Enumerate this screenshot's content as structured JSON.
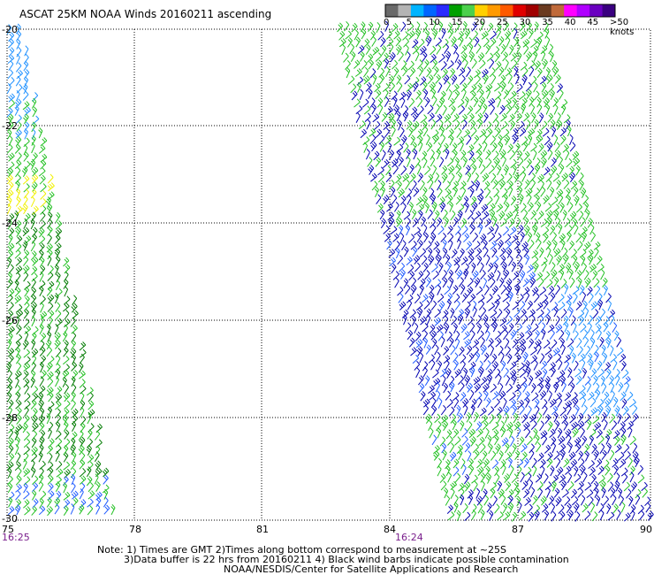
{
  "title": "ASCAT 25KM NOAA Winds 20160211 ascending",
  "legend": {
    "colors": [
      "#6a6a6a",
      "#b4b4b4",
      "#00b4ff",
      "#0066ff",
      "#2a2aff",
      "#00a000",
      "#4cd04c",
      "#ffd000",
      "#ff9a00",
      "#ff5a00",
      "#e00000",
      "#a00000",
      "#6a3a20",
      "#c06a3a",
      "#ff00ff",
      "#b000ff",
      "#6a00c0",
      "#3a0080"
    ],
    "labels": [
      "0",
      "5",
      "10",
      "15",
      "20",
      "25",
      "30",
      "35",
      "40",
      "45",
      ">50 knots"
    ]
  },
  "axes": {
    "x_ticks": [
      "75",
      "78",
      "81",
      "84",
      "87",
      "90"
    ],
    "y_ticks": [
      "-20",
      "-22",
      "-24",
      "-26",
      "-28",
      "-30"
    ]
  },
  "times": {
    "left": "16:25",
    "right": "16:24"
  },
  "notes": [
    "Note: 1) Times are GMT 2)Times along bottom correspond to measurement at ~25S",
    "3)Data buffer is 22 hrs from 20160211 4) Black wind barbs indicate possible contamination",
    "NOAA/NESDIS/Center for Satellite Applications and Research"
  ],
  "wind_colors": {
    "dark_blue": "#0000b0",
    "blue": "#1e5aff",
    "light_blue": "#1e90ff",
    "green": "#22c022",
    "dark_green": "#007a00",
    "yellow": "#f0f000"
  }
}
